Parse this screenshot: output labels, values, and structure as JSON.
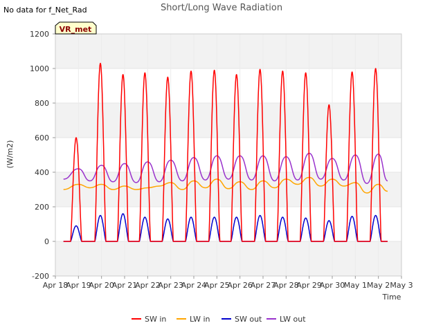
{
  "header": {
    "no_data_note": "No data for f_Net_Rad"
  },
  "badge": {
    "label": "VR_met"
  },
  "chart_data": {
    "type": "line",
    "title": "Short/Long Wave Radiation",
    "xlabel": "Time",
    "ylabel": "(W/m2)",
    "x_ticks": [
      "Apr 18",
      "Apr 19",
      "Apr 20",
      "Apr 21",
      "Apr 22",
      "Apr 23",
      "Apr 24",
      "Apr 25",
      "Apr 26",
      "Apr 27",
      "Apr 28",
      "Apr 29",
      "Apr 30",
      "May 1",
      "May 2",
      "May 3"
    ],
    "xlim": [
      0,
      15
    ],
    "ylim": [
      -200,
      1200
    ],
    "y_ticks": [
      -200,
      0,
      200,
      400,
      600,
      800,
      1000,
      1200
    ],
    "grid": true,
    "legend_position": "bottom-center",
    "colors": {
      "SW in": "#ff0000",
      "LW in": "#ffa500",
      "SW out": "#0000cd",
      "LW out": "#9932cc",
      "band": "#f2f2f2"
    },
    "x_days": [
      0.35,
      1.0,
      1.5,
      2.0,
      2.5,
      3.0,
      3.5,
      4.0,
      4.5,
      5.0,
      5.5,
      6.0,
      6.5,
      7.0,
      7.5,
      8.0,
      8.5,
      9.0,
      9.5,
      10.0,
      10.5,
      11.0,
      11.5,
      12.0,
      12.5,
      13.0,
      13.5,
      14.0,
      14.4
    ],
    "series": [
      {
        "name": "SW in",
        "peak_days": [
          0.9,
          1.95,
          2.93,
          3.88,
          4.87,
          5.88,
          6.89,
          7.85,
          8.87,
          9.85,
          10.85,
          11.86,
          12.86,
          13.88
        ],
        "peak_values": [
          600,
          1030,
          965,
          975,
          950,
          985,
          990,
          965,
          995,
          985,
          975,
          790,
          980,
          1000
        ],
        "night_value": 0
      },
      {
        "name": "LW in",
        "values": [
          300,
          330,
          310,
          330,
          300,
          320,
          300,
          310,
          320,
          340,
          300,
          350,
          310,
          360,
          305,
          345,
          300,
          350,
          310,
          360,
          330,
          370,
          320,
          360,
          320,
          340,
          280,
          330,
          290
        ]
      },
      {
        "name": "SW out",
        "peak_days": [
          0.9,
          1.95,
          2.93,
          3.88,
          4.87,
          5.88,
          6.89,
          7.85,
          8.87,
          9.85,
          10.85,
          11.86,
          12.86,
          13.88
        ],
        "peak_values": [
          90,
          150,
          160,
          140,
          130,
          140,
          140,
          140,
          150,
          140,
          135,
          120,
          145,
          150
        ],
        "night_value": 0
      },
      {
        "name": "LW out",
        "values": [
          360,
          420,
          350,
          440,
          345,
          450,
          340,
          460,
          345,
          470,
          350,
          485,
          355,
          495,
          360,
          495,
          355,
          495,
          350,
          490,
          355,
          510,
          360,
          480,
          355,
          500,
          335,
          505,
          350
        ]
      }
    ]
  }
}
